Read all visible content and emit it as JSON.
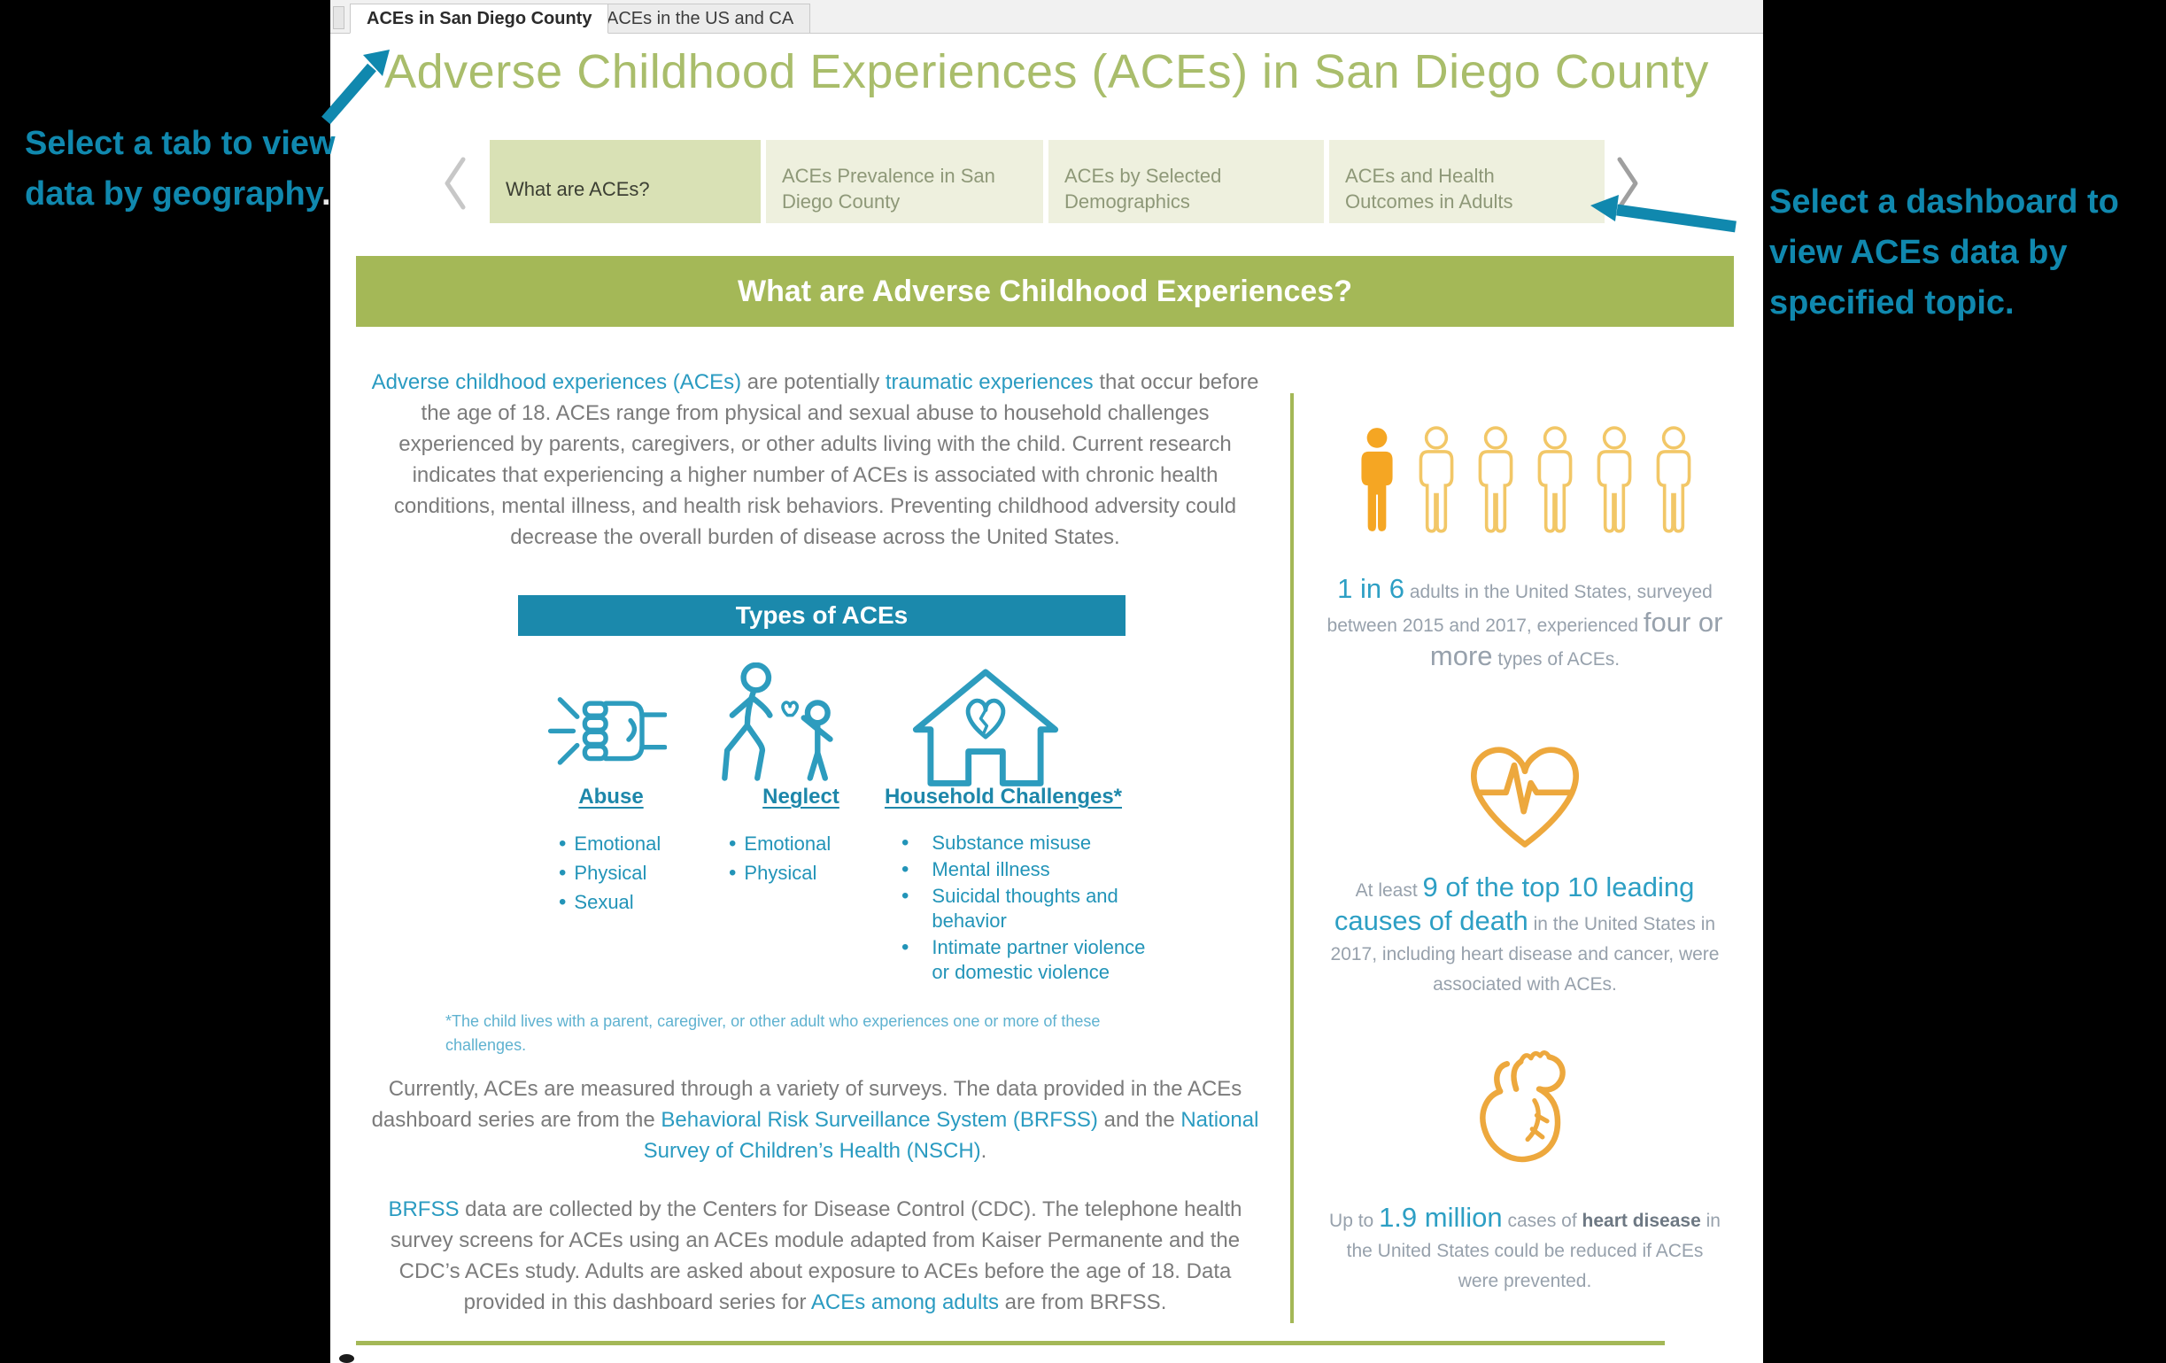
{
  "annotations": {
    "left": {
      "segments": [
        {
          "t": "Select a tab to view data by geography"
        },
        {
          "t": ".",
          "s": "white"
        }
      ]
    },
    "right": "Select a dashboard to view ACEs data by specified topic."
  },
  "window_tabs": {
    "tabs": [
      {
        "label": "ACEs in San Diego County",
        "active": true
      },
      {
        "label": "ACEs in the US and CA",
        "active": false
      }
    ]
  },
  "header": {
    "title": "Adverse Childhood Experiences (ACEs) in San Diego County"
  },
  "nav": {
    "prev_icon": "chevron-left",
    "next_icon": "chevron-right",
    "buttons": [
      {
        "label": "What are ACEs?",
        "active": true
      },
      {
        "label": "ACEs Prevalence in San Diego County",
        "active": false
      },
      {
        "label": "ACEs by Selected Demographics",
        "active": false
      },
      {
        "label": "ACEs and Health Outcomes in Adults",
        "active": false
      }
    ]
  },
  "banner": {
    "title": "What are Adverse Childhood Experiences?"
  },
  "intro": {
    "segments": [
      {
        "t": "Adverse childhood experiences (ACEs)",
        "s": "teal"
      },
      {
        "t": " are potentially "
      },
      {
        "t": "traumatic experiences",
        "s": "teal"
      },
      {
        "t": " that occur before the age of 18. ACEs range from physical and sexual abuse to household challenges experienced by parents, caregivers, or other adults living with the child. Current research indicates that experiencing a higher number of ACEs is associated with chronic health conditions, mental illness, and health risk behaviors. Preventing childhood adversity could decrease the overall burden of disease across the United States."
      }
    ]
  },
  "types": {
    "banner": "Types of ACEs",
    "columns": [
      {
        "label": "Abuse",
        "icon": "fist-icon",
        "items": [
          "Emotional",
          "Physical",
          "Sexual"
        ]
      },
      {
        "label": "Neglect",
        "icon": "neglect-icon",
        "items": [
          "Emotional",
          "Physical"
        ]
      },
      {
        "label": "Household Challenges*",
        "icon": "house-broken-heart-icon",
        "items": [
          "Substance misuse",
          "Mental illness",
          "Suicidal thoughts and behavior",
          "Intimate partner violence or domestic violence"
        ]
      }
    ],
    "footnote": "*The child lives with a parent, caregiver, or other adult who experiences one or more of these challenges."
  },
  "surveys": {
    "segments": [
      {
        "t": "Currently, ACEs are measured through a variety of surveys. The data provided in the ACEs dashboard series are from the "
      },
      {
        "t": "Behavioral Risk Surveillance System (BRFSS)",
        "s": "teal"
      },
      {
        "t": " and the "
      },
      {
        "t": "National Survey of Children’s Health (NSCH)",
        "s": "teal"
      },
      {
        "t": "."
      }
    ]
  },
  "brfss": {
    "segments": [
      {
        "t": "BRFSS",
        "s": "teal"
      },
      {
        "t": " data are collected by the Centers for Disease Control (CDC). The telephone health survey screens for ACEs using an ACEs module adapted from Kaiser Permanente and the CDC’s ACEs study. Adults are asked about exposure to ACEs before the age of 18. Data provided in this dashboard series for "
      },
      {
        "t": "ACEs among adults",
        "s": "teal"
      },
      {
        "t": " are from BRFSS."
      }
    ]
  },
  "stats": [
    {
      "icon": "people-figures-icon",
      "segments": [
        {
          "t": "1 in 6",
          "s": "bigteal"
        },
        {
          "t": " adults in the United States, surveyed between 2015 and 2017, experienced "
        },
        {
          "t": "four or more",
          "s": "biggray"
        },
        {
          "t": " types of ACEs."
        }
      ]
    },
    {
      "icon": "heart-ekg-icon",
      "segments": [
        {
          "t": "At least "
        },
        {
          "t": "9 of the top 10 leading causes of death",
          "s": "bigteal"
        },
        {
          "t": " in the United States in 2017, including heart disease and cancer, were associated with ACEs."
        }
      ]
    },
    {
      "icon": "anatomical-heart-icon",
      "segments": [
        {
          "t": "Up to "
        },
        {
          "t": "1.9 million",
          "s": "bigteal"
        },
        {
          "t": " cases of "
        },
        {
          "t": "heart disease",
          "s": "strong"
        },
        {
          "t": " in the United States could be reduced if ACEs were prevented."
        }
      ]
    }
  ],
  "colors": {
    "olive": "#a4b857",
    "teal_banner": "#1b89ac",
    "link_teal": "#2a9bc1",
    "annotation_teal": "#1088ae",
    "orange_solid": "#f5a623",
    "orange_outline": "#eda83d",
    "yellow_outline": "#f2c767",
    "body_gray": "#7b7b7b"
  }
}
